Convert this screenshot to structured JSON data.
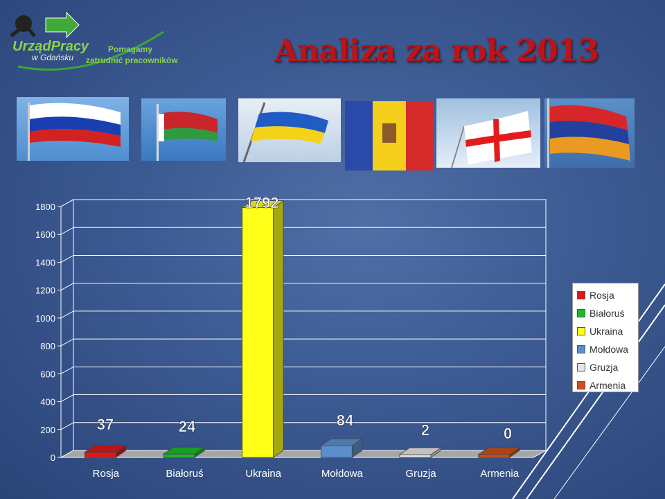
{
  "header": {
    "logo_line1": "UrządPracy",
    "logo_line2": "w Gdańsku",
    "tagline_line1": "Pomagamy",
    "tagline_line2": "zatrudnić pracowników"
  },
  "flags": [
    "russia-flag-icon",
    "belarus-flag-icon",
    "ukraine-flag-icon",
    "moldova-flag-icon",
    "georgia-flag-icon",
    "armenia-flag-icon"
  ],
  "chart_data": {
    "type": "bar",
    "title": "Analiza za rok 2013",
    "categories": [
      "Rosja",
      "Białoruś",
      "Ukraina",
      "Mołdowa",
      "Gruzja",
      "Armenia"
    ],
    "series": [
      {
        "values": [
          37,
          24,
          1792,
          84,
          2,
          0
        ]
      }
    ],
    "colors": [
      "#d91a1a",
      "#1fb82a",
      "#ffff1a",
      "#5b8fc9",
      "#e4e4e4",
      "#c8501c"
    ],
    "data_labels": [
      "37",
      "24",
      "1792",
      "84",
      "2",
      "0"
    ],
    "yticks": [
      0,
      200,
      400,
      600,
      800,
      1000,
      1200,
      1400,
      1600,
      1800
    ],
    "ylim": [
      0,
      1800
    ],
    "grid": true,
    "legend": [
      "Rosja",
      "Białoruś",
      "Ukraina",
      "Mołdowa",
      "Gruzja",
      "Armenia"
    ],
    "legend_position": "right"
  }
}
